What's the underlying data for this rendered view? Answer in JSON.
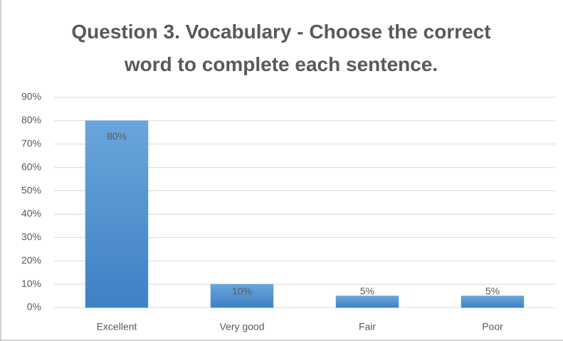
{
  "chart_data": {
    "type": "bar",
    "title": "Question 3. Vocabulary - Choose the correct word to complete each sentence.",
    "categories": [
      "Excellent",
      "Very good",
      "Fair",
      "Poor"
    ],
    "values": [
      80,
      10,
      5,
      5
    ],
    "value_labels": [
      "80%",
      "10%",
      "5%",
      "5%"
    ],
    "color": "#5b9bd5",
    "ylim": [
      0,
      90
    ],
    "yticks": [
      {
        "value": 0,
        "label": "0%"
      },
      {
        "value": 10,
        "label": "10%"
      },
      {
        "value": 20,
        "label": "20%"
      },
      {
        "value": 30,
        "label": "30%"
      },
      {
        "value": 40,
        "label": "40%"
      },
      {
        "value": 50,
        "label": "50%"
      },
      {
        "value": 60,
        "label": "60%"
      },
      {
        "value": 70,
        "label": "70%"
      },
      {
        "value": 80,
        "label": "80%"
      },
      {
        "value": 90,
        "label": "90%"
      }
    ],
    "grid": true
  }
}
